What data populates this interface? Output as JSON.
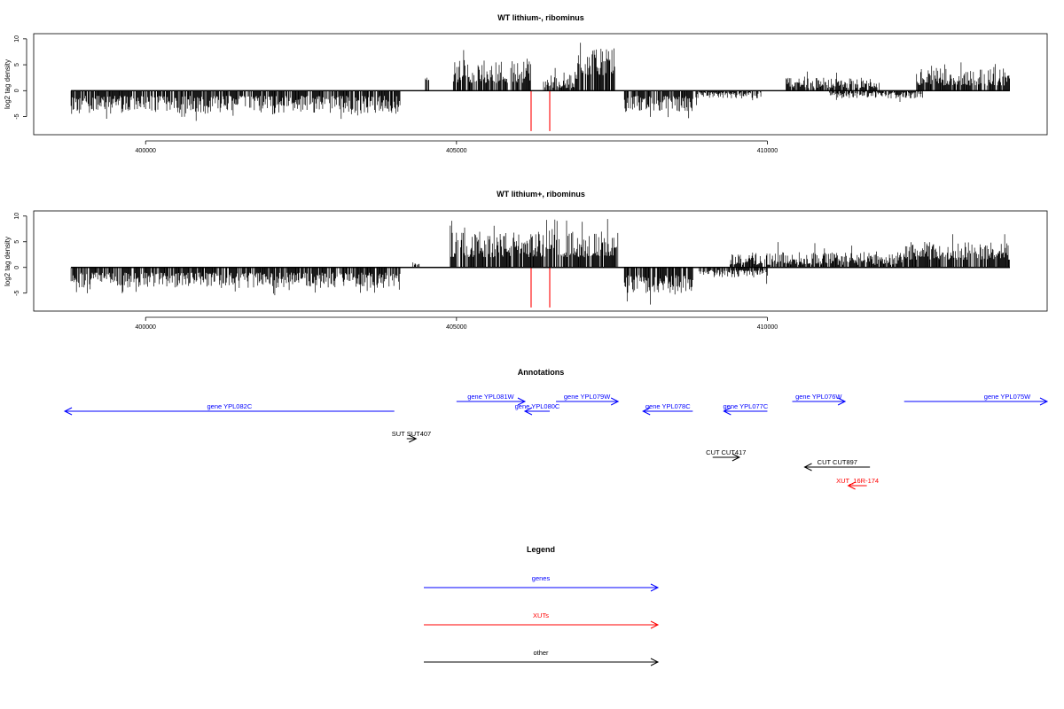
{
  "chart_data": [
    {
      "type": "bar",
      "title": "WT lithium-, ribominus",
      "ylabel": "log2 tag density",
      "xlim": [
        398200,
        414500
      ],
      "ylim": [
        -8.5,
        11
      ],
      "xticks": [
        400000,
        405000,
        410000
      ],
      "xtick_labels": [
        "400000",
        "405000",
        "410000"
      ],
      "yticks": [
        -5,
        0,
        5,
        10
      ],
      "ytick_labels": [
        "-5",
        "0",
        "5",
        "10"
      ],
      "grid": false,
      "segments": [
        {
          "start": 398800,
          "end": 404100,
          "sign": -1,
          "lo": 1.0,
          "hi": 4.5,
          "spike": 6.0
        },
        {
          "start": 404500,
          "end": 404560,
          "sign": 1,
          "lo": 2.0,
          "hi": 2.6,
          "spike": 2.6
        },
        {
          "start": 404950,
          "end": 406200,
          "sign": 1,
          "lo": 1.5,
          "hi": 6.0,
          "spike": 8.0
        },
        {
          "start": 406400,
          "end": 406950,
          "sign": 1,
          "lo": 0.5,
          "hi": 3.5,
          "spike": 4.5
        },
        {
          "start": 406950,
          "end": 407550,
          "sign": 1,
          "lo": 3.0,
          "hi": 8.0,
          "spike": 10.0
        },
        {
          "start": 407700,
          "end": 408800,
          "sign": -1,
          "lo": 1.0,
          "hi": 4.0,
          "spike": 5.5
        },
        {
          "start": 408850,
          "end": 409900,
          "sign": -1,
          "lo": 0.3,
          "hi": 1.5,
          "spike": 3.0
        },
        {
          "start": 410300,
          "end": 411800,
          "sign": 1,
          "lo": 0.5,
          "hi": 2.5,
          "spike": 4.5
        },
        {
          "start": 411000,
          "end": 412500,
          "sign": -1,
          "lo": 0.3,
          "hi": 1.5,
          "spike": 2.8
        },
        {
          "start": 412400,
          "end": 413900,
          "sign": 1,
          "lo": 1.0,
          "hi": 4.5,
          "spike": 5.5
        }
      ],
      "red_lines": [
        {
          "x": 406200,
          "y": -7.8
        },
        {
          "x": 406500,
          "y": -7.8
        }
      ]
    },
    {
      "type": "bar",
      "title": "WT lithium+, ribominus",
      "ylabel": "log2 tag density",
      "xlim": [
        398200,
        414500
      ],
      "ylim": [
        -8.5,
        11
      ],
      "xticks": [
        400000,
        405000,
        410000
      ],
      "xtick_labels": [
        "400000",
        "405000",
        "410000"
      ],
      "yticks": [
        -5,
        0,
        5,
        10
      ],
      "ytick_labels": [
        "-5",
        "0",
        "5",
        "10"
      ],
      "grid": false,
      "segments": [
        {
          "start": 398800,
          "end": 404100,
          "sign": -1,
          "lo": 1.0,
          "hi": 4.0,
          "spike": 5.5
        },
        {
          "start": 404300,
          "end": 404400,
          "sign": 1,
          "lo": 0.5,
          "hi": 1.0,
          "spike": 1.0
        },
        {
          "start": 404900,
          "end": 407600,
          "sign": 1,
          "lo": 2.0,
          "hi": 7.0,
          "spike": 9.5
        },
        {
          "start": 407700,
          "end": 408800,
          "sign": -1,
          "lo": 1.5,
          "hi": 5.0,
          "spike": 7.5
        },
        {
          "start": 408900,
          "end": 410000,
          "sign": -1,
          "lo": 0.5,
          "hi": 2.0,
          "spike": 3.5
        },
        {
          "start": 409400,
          "end": 412200,
          "sign": 1,
          "lo": 0.5,
          "hi": 3.0,
          "spike": 5.0
        },
        {
          "start": 412200,
          "end": 413900,
          "sign": 1,
          "lo": 1.5,
          "hi": 5.0,
          "spike": 6.5
        }
      ],
      "red_lines": [
        {
          "x": 406200,
          "y": -7.8
        },
        {
          "x": 406500,
          "y": -7.8
        }
      ]
    }
  ],
  "annotations": {
    "title": "Annotations",
    "items": [
      {
        "label": "gene YPL082C",
        "kind": "gene",
        "start": 398700,
        "end": 404000,
        "strand": "-",
        "row": 1
      },
      {
        "label": "gene YPL081W",
        "kind": "gene",
        "start": 405000,
        "end": 406100,
        "strand": "+",
        "row": 0
      },
      {
        "label": "gene YPL080C",
        "kind": "gene",
        "start": 406100,
        "end": 406500,
        "strand": "-",
        "row": 1
      },
      {
        "label": "gene YPL079W",
        "kind": "gene",
        "start": 406600,
        "end": 407600,
        "strand": "+",
        "row": 0
      },
      {
        "label": "gene YPL078C",
        "kind": "gene",
        "start": 408000,
        "end": 408800,
        "strand": "-",
        "row": 1
      },
      {
        "label": "gene YPL077C",
        "kind": "gene",
        "start": 409300,
        "end": 410000,
        "strand": "-",
        "row": 1
      },
      {
        "label": "gene YPL076W",
        "kind": "gene",
        "start": 410400,
        "end": 411250,
        "strand": "+",
        "row": 0
      },
      {
        "label": "gene YPL075W",
        "kind": "gene",
        "start": 412200,
        "end": 414500,
        "strand": "+",
        "row": 0
      },
      {
        "label": "SUT SUT407",
        "kind": "other",
        "start": 404200,
        "end": 404350,
        "strand": "+",
        "row": 3
      },
      {
        "label": "CUT CUT417",
        "kind": "other",
        "start": 409120,
        "end": 409550,
        "strand": "+",
        "row": 5
      },
      {
        "label": "CUT CUT897",
        "kind": "other",
        "start": 410600,
        "end": 411650,
        "strand": "-",
        "row": 6
      },
      {
        "label": "XUT_16R-174",
        "kind": "xut",
        "start": 411300,
        "end": 411600,
        "strand": "-",
        "row": 7
      }
    ]
  },
  "legend": {
    "title": "Legend",
    "items": [
      {
        "label": "genes",
        "kind": "gene"
      },
      {
        "label": "XUTs",
        "kind": "xut"
      },
      {
        "label": "other",
        "kind": "other"
      }
    ]
  },
  "colors": {
    "gene": "#0000ff",
    "xut": "#ff0000",
    "other": "#000000",
    "bar": "#000000",
    "red_line": "#ff5050"
  }
}
